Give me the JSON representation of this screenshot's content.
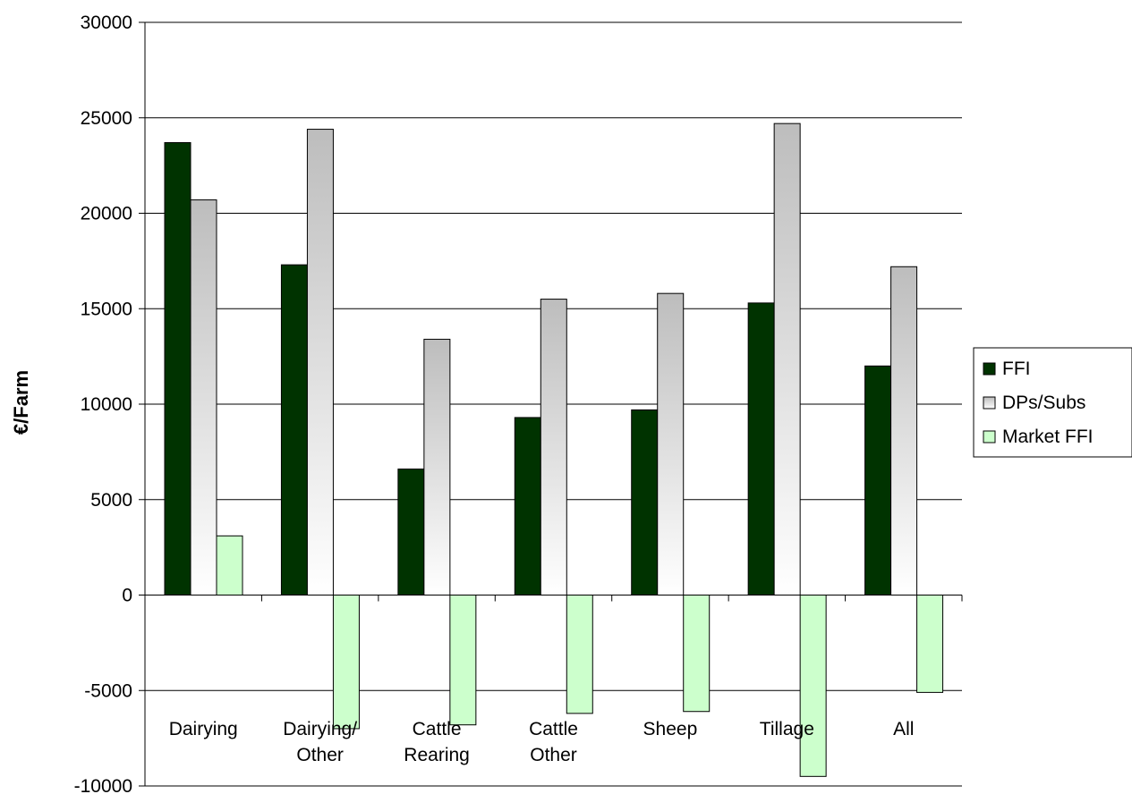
{
  "chart_data": {
    "type": "bar",
    "title": "",
    "xlabel": "",
    "ylabel": "€/Farm",
    "ylim": [
      -10000,
      30000
    ],
    "yticks": [
      30000,
      25000,
      20000,
      15000,
      10000,
      5000,
      0,
      -5000,
      -10000
    ],
    "categories": [
      [
        "Dairying"
      ],
      [
        "Dairying/",
        "Other"
      ],
      [
        "Cattle",
        "Rearing"
      ],
      [
        "Cattle",
        "Other"
      ],
      [
        "Sheep"
      ],
      [
        "Tillage"
      ],
      [
        "All"
      ]
    ],
    "series": [
      {
        "name": "FFI",
        "color": "#003300",
        "values": [
          23700,
          17300,
          6600,
          9300,
          9700,
          15300,
          12000
        ]
      },
      {
        "name": "DPs/Subs",
        "color": "#c0c0c0",
        "values": [
          20700,
          24400,
          13400,
          15500,
          15800,
          24700,
          17200
        ]
      },
      {
        "name": "Market FFI",
        "color": "#ccffcc",
        "values": [
          3100,
          -7000,
          -6800,
          -6200,
          -6100,
          -9500,
          -5100
        ]
      }
    ],
    "grid": true,
    "legend_position": "right"
  }
}
